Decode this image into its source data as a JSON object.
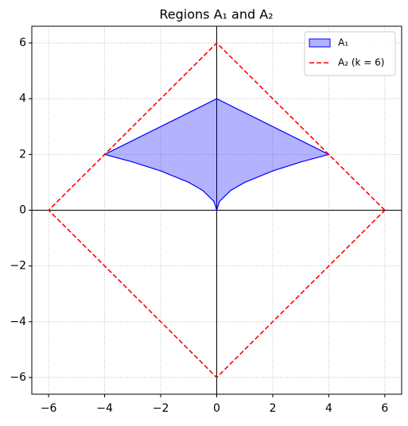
{
  "chart_data": {
    "type": "line",
    "title": "Regions A₁ and A₂",
    "xlim": [
      -6.6,
      6.6
    ],
    "ylim": [
      -6.6,
      6.6
    ],
    "xticks": [
      {
        "value": -6,
        "label": "−6"
      },
      {
        "value": -4,
        "label": "−4"
      },
      {
        "value": -2,
        "label": "−2"
      },
      0,
      2,
      4,
      6
    ],
    "yticks": [
      {
        "value": -6,
        "label": "−6"
      },
      {
        "value": -4,
        "label": "−4"
      },
      {
        "value": -2,
        "label": "−2"
      },
      0,
      2,
      4,
      6
    ],
    "grid": true,
    "zero_lines": true,
    "legend": "upper right",
    "series": [
      {
        "name": "A₁",
        "fill": true,
        "color": "#0000ff",
        "x": [
          -4,
          0,
          4,
          3,
          2,
          1,
          0.5,
          0.1,
          0,
          -0.1,
          -0.5,
          -1,
          -2,
          -3
        ],
        "values": [
          2,
          4,
          2,
          1.73,
          1.41,
          1,
          0.71,
          0.32,
          0,
          0.32,
          0.71,
          1,
          1.41,
          1.73
        ]
      },
      {
        "name": "A₂ (k = 6)",
        "fill": false,
        "dashed": true,
        "color": "#ff0000",
        "x": [
          6,
          0,
          -6,
          0,
          6
        ],
        "values": [
          0,
          6,
          0,
          -6,
          0
        ]
      }
    ]
  }
}
